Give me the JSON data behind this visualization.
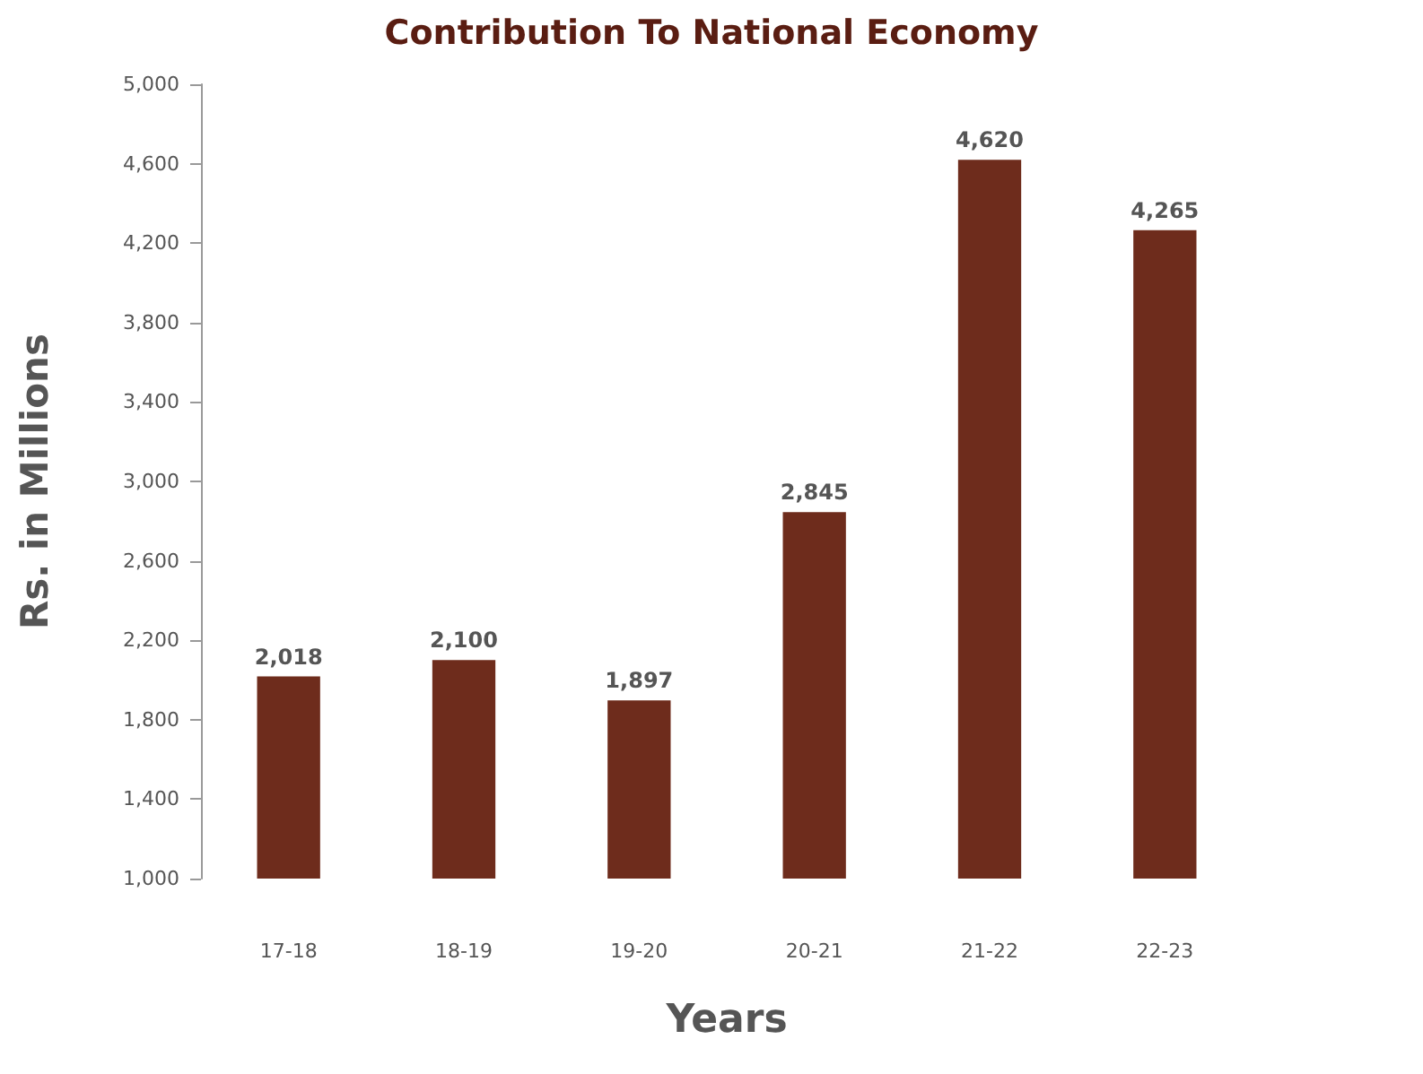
{
  "chart_data": {
    "type": "bar",
    "title": "Contribution To National Economy",
    "xlabel": "Years",
    "ylabel": "Rs. in Millions",
    "categories": [
      "17-18",
      "18-19",
      "19-20",
      "20-21",
      "21-22",
      "22-23"
    ],
    "values": [
      2018,
      2100,
      1897,
      2845,
      4620,
      4265
    ],
    "color": "#6e2c1c",
    "ylim": [
      1000,
      5000
    ],
    "yticks": [
      {
        "value": 1000,
        "label": "1,000"
      },
      {
        "value": 1400,
        "label": "1,400"
      },
      {
        "value": 1800,
        "label": "1,800"
      },
      {
        "value": 2200,
        "label": "2,200"
      },
      {
        "value": 2600,
        "label": "2,600"
      },
      {
        "value": 3000,
        "label": "3,000"
      },
      {
        "value": 3400,
        "label": "3,400"
      },
      {
        "value": 3800,
        "label": "3,800"
      },
      {
        "value": 4200,
        "label": "4,200"
      },
      {
        "value": 4600,
        "label": "4,600"
      },
      {
        "value": 5000,
        "label": "5,000"
      }
    ],
    "value_labels": [
      "2,018",
      "2,100",
      "1,897",
      "2,845",
      "4,620",
      "4,265"
    ],
    "grid": false
  }
}
